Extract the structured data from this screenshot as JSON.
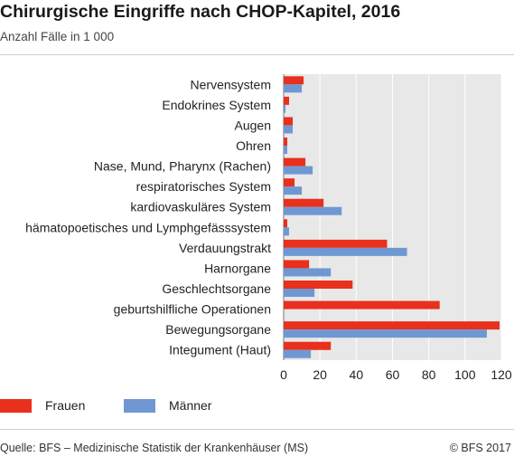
{
  "title": "Chirurgische Eingriffe nach CHOP-Kapitel, 2016",
  "subtitle": "Anzahl Fälle in 1 000",
  "colors": {
    "frauen": "#e8301c",
    "maenner": "#6f98d3",
    "plot_bg": "#e8e8e8",
    "grid": "#ffffff"
  },
  "legend": {
    "frauen": "Frauen",
    "maenner": "Männer"
  },
  "footer": {
    "source": "Quelle: BFS – Medizinische Statistik der Krankenhäuser (MS)",
    "copyright": "© BFS 2017"
  },
  "chart_data": {
    "type": "bar",
    "orientation": "horizontal",
    "title": "Chirurgische Eingriffe nach CHOP-Kapitel, 2016",
    "subtitle": "Anzahl Fälle in 1 000",
    "categories": [
      "Nervensystem",
      "Endokrines System",
      "Augen",
      "Ohren",
      "Nase, Mund, Pharynx (Rachen)",
      "respiratorisches System",
      "kardiovaskuläres System",
      "hämatopoetisches und Lymphgefässsystem",
      "Verdauungstrakt",
      "Harnorgane",
      "Geschlechtsorgane",
      "geburtshilfliche Operationen",
      "Bewegungsorgane",
      "Integument (Haut)"
    ],
    "series": [
      {
        "name": "Frauen",
        "values": [
          11,
          3,
          5,
          2,
          12,
          6,
          22,
          2,
          57,
          14,
          38,
          86,
          119,
          26
        ]
      },
      {
        "name": "Männer",
        "values": [
          10,
          1,
          5,
          2,
          16,
          10,
          32,
          3,
          68,
          26,
          17,
          0,
          112,
          15
        ]
      }
    ],
    "xlim": [
      0,
      120
    ],
    "xticks": [
      0,
      20,
      40,
      60,
      80,
      100,
      120
    ],
    "grid": true,
    "legend_position": "bottom-left"
  }
}
